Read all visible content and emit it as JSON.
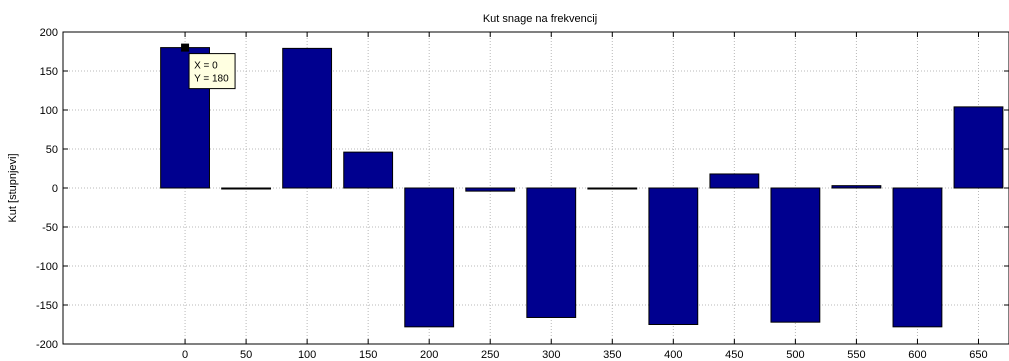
{
  "chart_data": {
    "type": "bar",
    "title": "Kut snage na frekvencij",
    "xlabel": "",
    "ylabel": "Kut [stupnjevi]",
    "x": [
      0,
      50,
      100,
      150,
      200,
      250,
      300,
      350,
      400,
      450,
      500,
      550,
      600,
      650
    ],
    "values": [
      180,
      -1,
      179,
      46,
      -178,
      -4,
      -166,
      -1,
      -175,
      18,
      -172,
      3,
      -178,
      104
    ],
    "xticks": [
      "0",
      "50",
      "100",
      "150",
      "200",
      "250",
      "300",
      "350",
      "400",
      "450",
      "500",
      "550",
      "600",
      "650"
    ],
    "yticks": [
      "-200",
      "-150",
      "-100",
      "-50",
      "0",
      "50",
      "100",
      "150",
      "200"
    ],
    "xlim": [
      -100,
      675
    ],
    "ylim": [
      -200,
      200
    ],
    "grid": true,
    "bar_color": "#00008f",
    "datatip": {
      "x_label": "X = 0",
      "y_label": "Y = 180",
      "x": 0,
      "y": 180
    }
  }
}
